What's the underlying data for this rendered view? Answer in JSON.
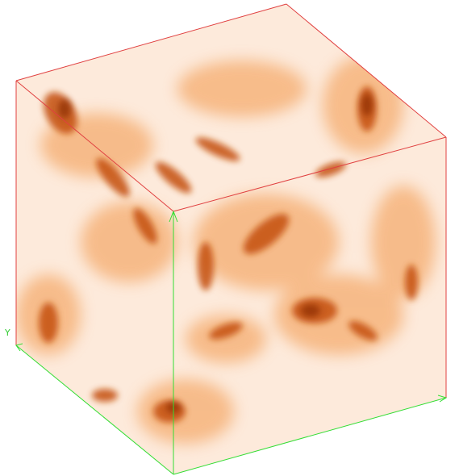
{
  "axes": {
    "y_label": "Y"
  }
}
